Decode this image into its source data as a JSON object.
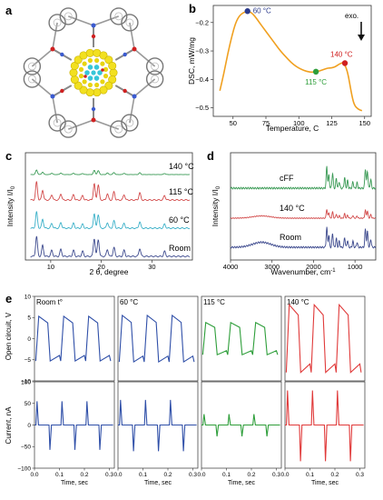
{
  "panels": {
    "a": {
      "letter": "a"
    },
    "b": {
      "letter": "b"
    },
    "c": {
      "letter": "c"
    },
    "d": {
      "letter": "d"
    },
    "e": {
      "letter": "e"
    }
  },
  "chart_data": [
    {
      "id": "b",
      "type": "line",
      "xlabel": "Temperature, C",
      "ylabel": "DSC, mW/mg",
      "xlim": [
        35,
        155
      ],
      "ylim": [
        -0.53,
        -0.14
      ],
      "xticks": [
        50,
        75,
        100,
        125,
        150
      ],
      "yticks": [
        -0.2,
        -0.3,
        -0.4,
        -0.5
      ],
      "annotation": "exo.",
      "color": "#f0a020",
      "x": [
        40,
        43,
        46,
        49,
        52,
        55,
        58,
        61,
        64,
        67,
        70,
        74,
        78,
        82,
        86,
        90,
        94,
        98,
        102,
        106,
        110,
        113,
        116,
        119,
        122,
        125,
        128,
        131,
        134,
        137,
        140,
        142,
        145,
        148
      ],
      "y": [
        -0.44,
        -0.38,
        -0.31,
        -0.25,
        -0.2,
        -0.175,
        -0.165,
        -0.16,
        -0.165,
        -0.18,
        -0.2,
        -0.225,
        -0.25,
        -0.275,
        -0.3,
        -0.32,
        -0.34,
        -0.355,
        -0.365,
        -0.372,
        -0.375,
        -0.373,
        -0.37,
        -0.365,
        -0.36,
        -0.36,
        -0.355,
        -0.345,
        -0.34,
        -0.37,
        -0.45,
        -0.49,
        -0.505,
        -0.51
      ],
      "markers": [
        {
          "x": 61,
          "y": -0.16,
          "label": "60 °C",
          "color": "#2b3a8c"
        },
        {
          "x": 113,
          "y": -0.373,
          "label": "115 °C",
          "color": "#2e9e3a"
        },
        {
          "x": 135,
          "y": -0.343,
          "label": "140 °C",
          "color": "#d02020"
        }
      ]
    },
    {
      "id": "c",
      "type": "line",
      "xlabel": "2 θ, degree",
      "ylabel": "Intensity I/I",
      "ylabel_sub": "0",
      "xlim": [
        5,
        38
      ],
      "xticks": [
        10,
        20,
        30
      ],
      "series": [
        {
          "label": "Room",
          "color": "#3d4a8e"
        },
        {
          "label": "60 °C",
          "color": "#3ab0c8"
        },
        {
          "label": "115 °C",
          "color": "#d24a4a"
        },
        {
          "label": "140 °C",
          "color": "#3a9a55"
        }
      ],
      "peaks": [
        [
          7.2,
          1.0
        ],
        [
          8.4,
          0.55
        ],
        [
          10.2,
          0.3
        ],
        [
          12.0,
          0.35
        ],
        [
          14.5,
          0.3
        ],
        [
          16.3,
          0.25
        ],
        [
          18.6,
          0.9
        ],
        [
          19.4,
          0.85
        ],
        [
          21.2,
          0.35
        ],
        [
          22.5,
          0.45
        ],
        [
          24.5,
          0.3
        ],
        [
          27.6,
          0.4
        ],
        [
          32.5,
          0.25
        ]
      ]
    },
    {
      "id": "d",
      "type": "line",
      "xlabel": "Wavenumber, cm",
      "xlabel_sup": "-1",
      "ylabel": "Intensity I/I",
      "ylabel_sub": "0",
      "xlim": [
        4000,
        500
      ],
      "xticks": [
        4000,
        3000,
        2000,
        1000
      ],
      "series": [
        {
          "label": "Room",
          "color": "#3d4a8e"
        },
        {
          "label": "140 °C",
          "color": "#d24a4a"
        },
        {
          "label": "cFF",
          "color": "#3a9a55"
        }
      ]
    },
    {
      "id": "e",
      "type": "line",
      "xlabel": "Time, sec",
      "xlim": [
        0,
        0.32
      ],
      "xticks": [
        0.0,
        0.1,
        0.2,
        0.3
      ],
      "top_ylabel": "Open circuit, V",
      "top_ylim": [
        -10,
        10
      ],
      "top_yticks": [
        -10,
        -5,
        0,
        5,
        10
      ],
      "bottom_ylabel": "Current, nA",
      "bottom_ylim": [
        -100,
        100
      ],
      "bottom_yticks": [
        -100,
        -50,
        0,
        50,
        100
      ],
      "columns": [
        {
          "label": "Room t°",
          "color": "#2f4fa8",
          "v_amp": 5.3,
          "i_amp": 55
        },
        {
          "label": "60 °C",
          "color": "#2f4fa8",
          "v_amp": 5.5,
          "i_amp": 58
        },
        {
          "label": "115 °C",
          "color": "#2e9e3a",
          "v_amp": 3.8,
          "i_amp": 25
        },
        {
          "label": "140 °C",
          "color": "#e03a3a",
          "v_amp": 8.0,
          "i_amp": 80
        }
      ]
    }
  ]
}
